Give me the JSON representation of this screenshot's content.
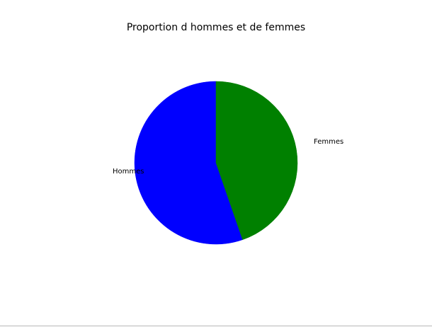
{
  "chart_data": {
    "type": "pie",
    "title": "Proportion d hommes et de femmes",
    "categories": [
      "Hommes",
      "Femmes"
    ],
    "values": [
      55.3,
      44.7
    ],
    "colors": [
      "#0000ff",
      "#008000"
    ],
    "start_angle_deg": 90,
    "direction": "counterclockwise",
    "legend": "none"
  }
}
